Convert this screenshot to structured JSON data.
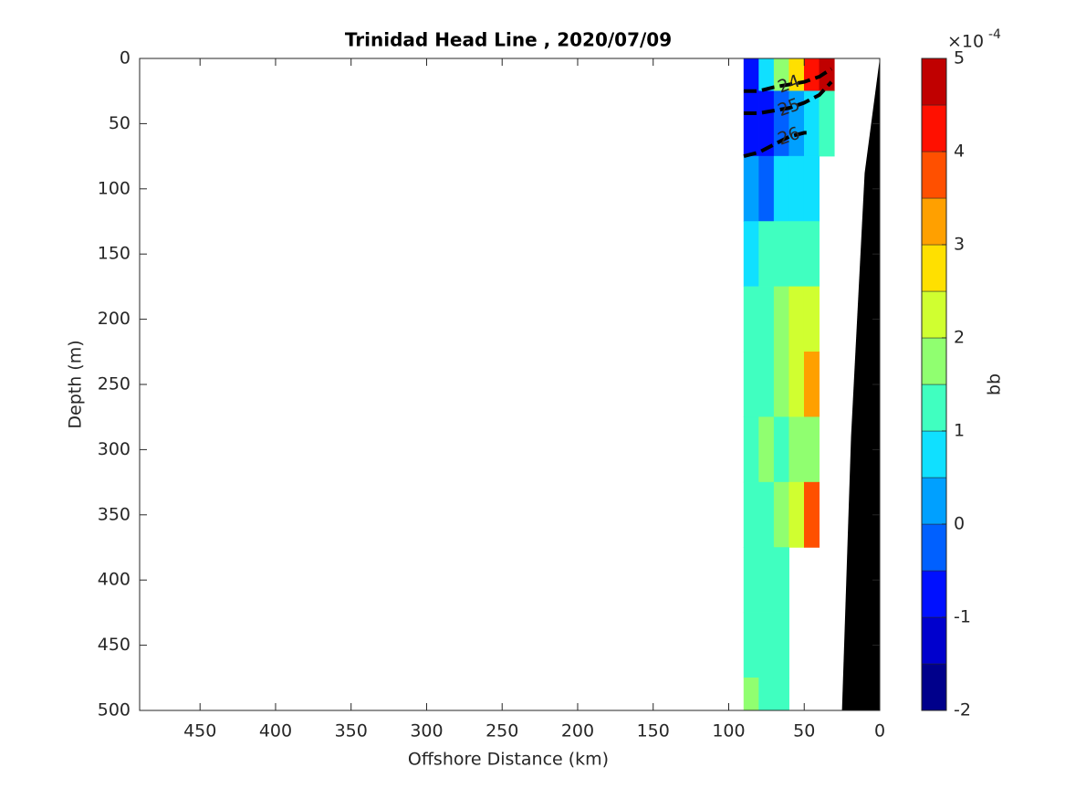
{
  "chart_data": {
    "type": "contourf",
    "title": "Trinidad Head Line , 2020/07/09",
    "xlabel": "Offshore Distance (km)",
    "ylabel": "Depth (m)",
    "xlim": [
      490,
      0
    ],
    "xticks": [
      450,
      400,
      350,
      300,
      250,
      200,
      150,
      100,
      50,
      0
    ],
    "ylim": [
      0,
      500
    ],
    "yticks": [
      0,
      50,
      100,
      150,
      200,
      250,
      300,
      350,
      400,
      450,
      500
    ],
    "x": [
      85,
      75,
      65,
      55,
      45,
      35
    ],
    "depth": [
      0,
      50,
      100,
      150,
      200,
      250,
      300,
      350,
      400,
      450,
      500
    ],
    "values": [
      [
        -1,
        0.5,
        1.5,
        2.5,
        4,
        4.5
      ],
      [
        -1,
        -1,
        -0.5,
        0,
        0.5,
        1
      ],
      [
        0,
        -0.5,
        0.5,
        0.5,
        0.5,
        null
      ],
      [
        0.5,
        1,
        1,
        1,
        1,
        null
      ],
      [
        1,
        1,
        1.5,
        2,
        2,
        null
      ],
      [
        1,
        1,
        1.5,
        2,
        3,
        null
      ],
      [
        1,
        1.5,
        1,
        1.5,
        1.5,
        null
      ],
      [
        1,
        1,
        1.5,
        2,
        3.5,
        null
      ],
      [
        1,
        1,
        1,
        null,
        null,
        null
      ],
      [
        1,
        1,
        1,
        null,
        null,
        null
      ],
      [
        1.5,
        1,
        1,
        null,
        null,
        null
      ]
    ],
    "contours": [
      {
        "level": 24,
        "x": [
          90,
          80,
          70,
          60,
          50,
          40,
          32
        ],
        "depth": [
          25,
          25,
          22,
          20,
          18,
          14,
          8
        ]
      },
      {
        "level": 25,
        "x": [
          90,
          80,
          70,
          60,
          50,
          40,
          32
        ],
        "depth": [
          42,
          42,
          40,
          38,
          34,
          28,
          18
        ]
      },
      {
        "level": 26,
        "x": [
          90,
          80,
          70,
          60,
          50,
          45
        ],
        "depth": [
          75,
          72,
          66,
          60,
          57,
          57
        ]
      }
    ],
    "bathymetry": {
      "x": [
        0,
        10,
        19,
        25
      ],
      "depth": [
        0,
        88,
        290,
        500
      ],
      "color": "#000000"
    },
    "colorbar": {
      "label": "bb",
      "clim": [
        -2,
        5
      ],
      "step": 0.5,
      "ticks": [
        -2,
        -1,
        0,
        1,
        2,
        3,
        4,
        5
      ],
      "multiplier": "×10",
      "exponent": "-4",
      "colors": [
        "#00008b",
        "#0000cd",
        "#0010ff",
        "#0060ff",
        "#00a0ff",
        "#10e0ff",
        "#40ffc0",
        "#90ff70",
        "#d0ff30",
        "#ffe000",
        "#ffa000",
        "#ff5000",
        "#ff1000",
        "#c00000"
      ]
    }
  }
}
